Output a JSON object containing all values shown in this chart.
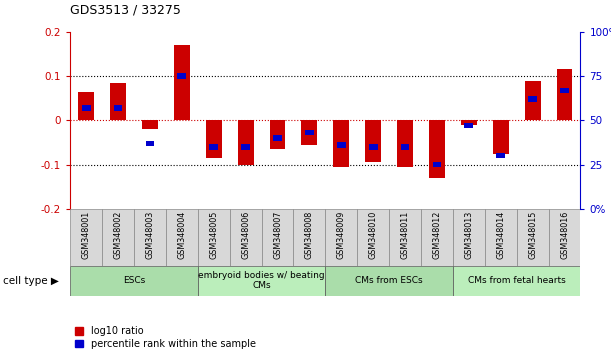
{
  "title": "GDS3513 / 33275",
  "samples": [
    "GSM348001",
    "GSM348002",
    "GSM348003",
    "GSM348004",
    "GSM348005",
    "GSM348006",
    "GSM348007",
    "GSM348008",
    "GSM348009",
    "GSM348010",
    "GSM348011",
    "GSM348012",
    "GSM348013",
    "GSM348014",
    "GSM348015",
    "GSM348016"
  ],
  "log10_ratio": [
    0.065,
    0.085,
    -0.02,
    0.17,
    -0.085,
    -0.1,
    -0.065,
    -0.055,
    -0.105,
    -0.095,
    -0.105,
    -0.13,
    -0.01,
    -0.075,
    0.09,
    0.115
  ],
  "percentile_rank": [
    57,
    57,
    37,
    75,
    35,
    35,
    40,
    43,
    36,
    35,
    35,
    25,
    47,
    30,
    62,
    67
  ],
  "bar_color_red": "#CC0000",
  "bar_color_blue": "#0000CC",
  "zero_line_color": "#CC0000",
  "dotted_line_color": "#000000",
  "cell_type_groups": [
    {
      "label": "ESCs",
      "start": 0,
      "end": 3
    },
    {
      "label": "embryoid bodies w/ beating\nCMs",
      "start": 4,
      "end": 7
    },
    {
      "label": "CMs from ESCs",
      "start": 8,
      "end": 11
    },
    {
      "label": "CMs from fetal hearts",
      "start": 12,
      "end": 15
    }
  ],
  "group_colors": [
    "#AADDAA",
    "#BBEEBB",
    "#AADDAA",
    "#BBEEBB"
  ],
  "cell_type_label": "cell type",
  "legend_red": "log10 ratio",
  "legend_blue": "percentile rank within the sample",
  "ylim": [
    -0.2,
    0.2
  ],
  "bar_width": 0.5,
  "blue_marker_size": 0.012,
  "fig_width": 6.11,
  "fig_height": 3.54
}
